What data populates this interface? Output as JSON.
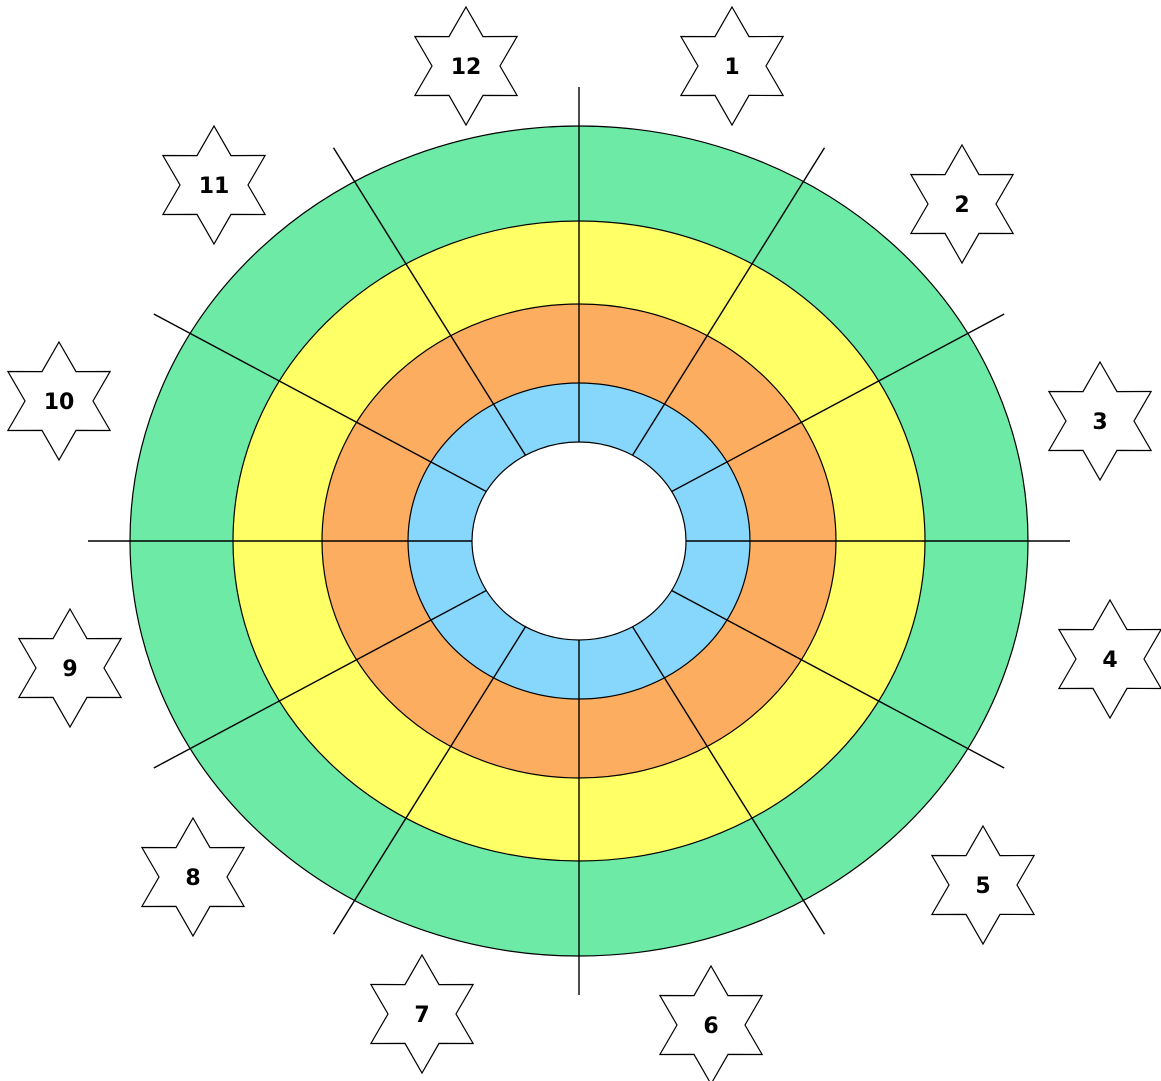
{
  "rings": [
    {
      "name": "outer-ring",
      "color": "#6ceaa6"
    },
    {
      "name": "third-ring",
      "color": "#ffff66"
    },
    {
      "name": "second-ring",
      "color": "#fdad60"
    },
    {
      "name": "inner-ring",
      "color": "#87d6fc"
    }
  ],
  "center_color": "#ffffff",
  "line_color": "#000000",
  "sector_count": 12,
  "star_labels": [
    "1",
    "2",
    "3",
    "4",
    "5",
    "6",
    "7",
    "8",
    "9",
    "10",
    "11",
    "12"
  ]
}
